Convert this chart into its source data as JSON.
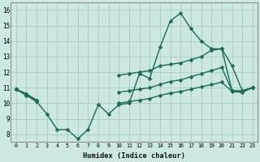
{
  "xlabel": "Humidex (Indice chaleur)",
  "x": [
    0,
    1,
    2,
    3,
    4,
    5,
    6,
    7,
    8,
    9,
    10,
    11,
    12,
    13,
    14,
    15,
    16,
    17,
    18,
    19,
    20,
    21,
    22,
    23
  ],
  "line1": [
    10.9,
    10.6,
    10.1,
    9.3,
    8.3,
    8.3,
    7.7,
    8.3,
    9.9,
    9.3,
    9.9,
    10.0,
    11.9,
    11.6,
    13.6,
    15.3,
    15.8,
    14.8,
    14.0,
    13.5,
    13.5,
    12.4,
    10.8,
    11.0
  ],
  "line2": [
    10.9,
    10.6,
    10.2,
    null,
    null,
    null,
    null,
    null,
    null,
    null,
    11.8,
    11.9,
    12.0,
    12.1,
    12.4,
    12.5,
    12.6,
    12.8,
    13.0,
    13.4,
    13.5,
    10.8,
    10.8,
    11.0
  ],
  "line3": [
    10.9,
    10.55,
    10.15,
    null,
    null,
    null,
    null,
    null,
    null,
    null,
    10.7,
    10.8,
    10.9,
    11.0,
    11.2,
    11.4,
    11.5,
    11.7,
    11.9,
    12.1,
    12.3,
    10.8,
    10.75,
    11.0
  ],
  "line4": [
    10.9,
    10.5,
    10.1,
    null,
    null,
    null,
    null,
    null,
    null,
    null,
    10.0,
    10.1,
    10.2,
    10.3,
    10.5,
    10.65,
    10.75,
    10.9,
    11.05,
    11.2,
    11.35,
    10.75,
    10.7,
    11.0
  ],
  "bg_color": "#cce8e0",
  "grid_color": "#aaccC4",
  "line_color": "#1a6b5a",
  "markersize": 2.5,
  "linewidth": 1.0,
  "ylim": [
    7.5,
    16.5
  ],
  "yticks": [
    8,
    9,
    10,
    11,
    12,
    13,
    14,
    15,
    16
  ],
  "xticks": [
    0,
    1,
    2,
    3,
    4,
    5,
    6,
    7,
    8,
    9,
    10,
    11,
    12,
    13,
    14,
    15,
    16,
    17,
    18,
    19,
    20,
    21,
    22,
    23
  ]
}
